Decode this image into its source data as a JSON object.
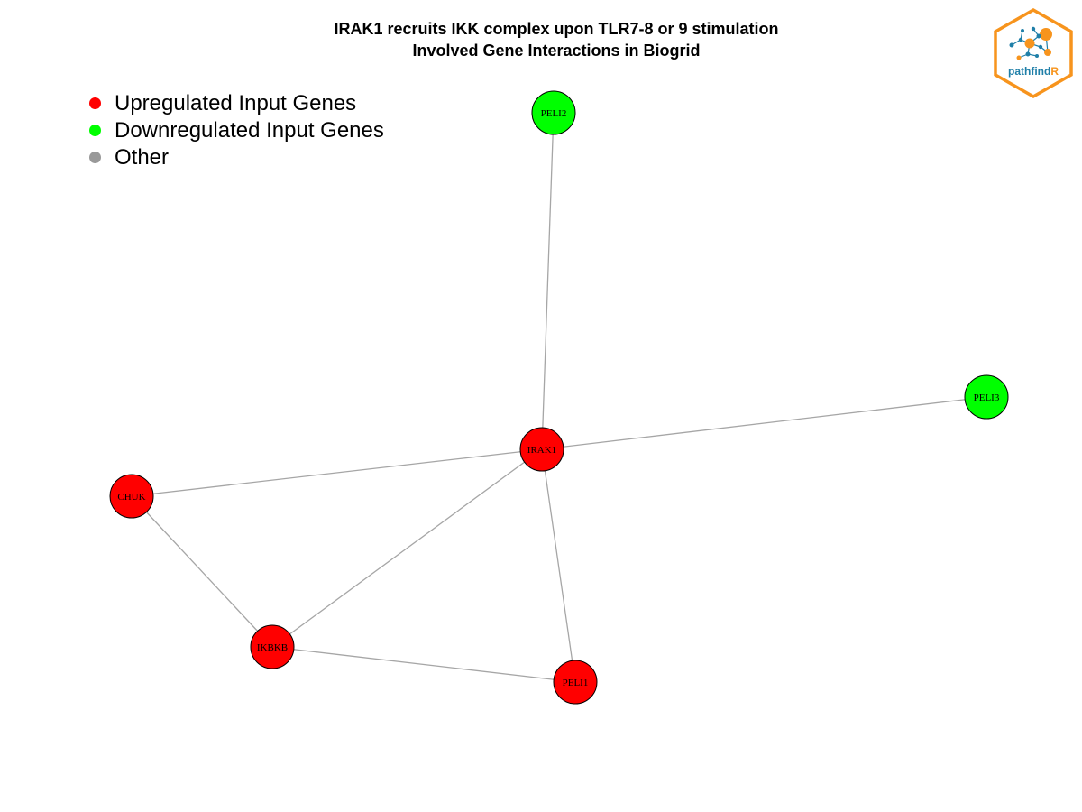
{
  "title": {
    "line1": "IRAK1 recruits IKK complex upon TLR7-8 or 9 stimulation",
    "line2": "Involved Gene Interactions in Biogrid"
  },
  "legend": [
    {
      "label": "Upregulated Input Genes",
      "color": "#ff0000"
    },
    {
      "label": "Downregulated Input Genes",
      "color": "#00ff00"
    },
    {
      "label": "Other",
      "color": "#999999"
    }
  ],
  "colors": {
    "edge": "#a6a6a6",
    "node_border": "#000000",
    "logo_orange": "#f7941d",
    "logo_blue": "#1f7fa8"
  },
  "logo": {
    "text_main": "pathfind",
    "text_accent": "R"
  },
  "nodes": [
    {
      "id": "IRAK1",
      "label": "IRAK1",
      "status": "up"
    },
    {
      "id": "PELI2",
      "label": "PELI2",
      "status": "down"
    },
    {
      "id": "PELI3",
      "label": "PELI3",
      "status": "down"
    },
    {
      "id": "CHUK",
      "label": "CHUK",
      "status": "up"
    },
    {
      "id": "IKBKB",
      "label": "IKBKB",
      "status": "up"
    },
    {
      "id": "PELI1",
      "label": "PELI1",
      "status": "up"
    }
  ],
  "edges": [
    [
      "IRAK1",
      "PELI2"
    ],
    [
      "IRAK1",
      "PELI3"
    ],
    [
      "IRAK1",
      "CHUK"
    ],
    [
      "IRAK1",
      "IKBKB"
    ],
    [
      "IRAK1",
      "PELI1"
    ],
    [
      "CHUK",
      "IKBKB"
    ],
    [
      "IKBKB",
      "PELI1"
    ]
  ]
}
